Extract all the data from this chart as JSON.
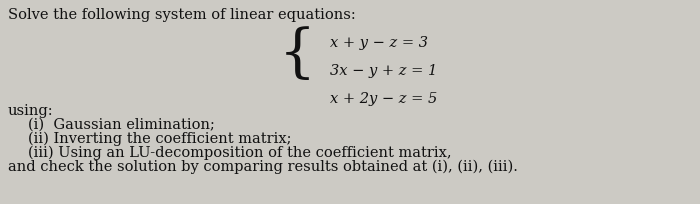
{
  "bg_color": "#cccac4",
  "title_text": "Solve the following system of linear equations:",
  "eq1": "x + y − z = 3",
  "eq2": "3x − y + z = 1",
  "eq3": "x + 2y − z = 5",
  "using_text": "using:",
  "item1": "(i)  Gaussian elimination;",
  "item2": "(ii) Inverting the coefficient matrix;",
  "item3": "(iii) Using an LU-decomposition of the coefficient matrix,",
  "footer": "and check the solution by comparing results obtained at (i), (ii), (iii).",
  "text_color": "#111111",
  "title_fontsize": 10.5,
  "body_fontsize": 10.5,
  "eq_fontsize": 10.5
}
